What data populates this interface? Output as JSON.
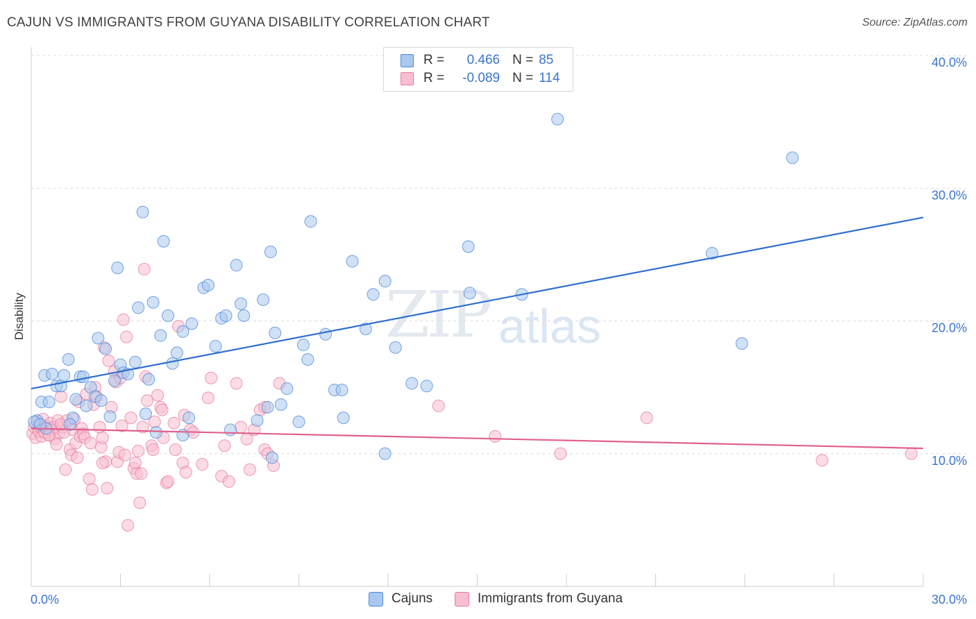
{
  "title": "CAJUN VS IMMIGRANTS FROM GUYANA DISABILITY CORRELATION CHART",
  "source": "Source: ZipAtlas.com",
  "watermark_zip": "ZIP",
  "watermark_atlas": "atlas",
  "legend": {
    "r_label": "R =",
    "n_label": "N =",
    "rows": [
      {
        "r": "0.466",
        "n": "85"
      },
      {
        "r": "-0.089",
        "n": "114"
      }
    ]
  },
  "colors": {
    "blue_fill": "#aac8ee",
    "blue_stroke": "#4a86d8",
    "blue_line": "#2e6fcf",
    "pink_fill": "#f7bfd0",
    "pink_stroke": "#e67a9e",
    "pink_line": "#e0608c",
    "tick_text": "#3a74d0"
  },
  "chart_data": {
    "type": "scatter",
    "title": "CAJUN VS IMMIGRANTS FROM GUYANA DISABILITY CORRELATION CHART",
    "xlabel": "",
    "ylabel": "Disability",
    "xlim": [
      0,
      30
    ],
    "ylim": [
      0,
      40
    ],
    "x_ticks": [
      "0.0%",
      "30.0%"
    ],
    "y_ticks": [
      "10.0%",
      "20.0%",
      "30.0%",
      "40.0%"
    ],
    "y_tick_values": [
      10,
      20,
      30,
      40
    ],
    "grid": true,
    "legend_position": "bottom",
    "series": [
      {
        "name": "Cajuns",
        "trend": [
          [
            0,
            14.9
          ],
          [
            30,
            27.8
          ]
        ],
        "points": [
          [
            0.2,
            12.5
          ],
          [
            0.35,
            13.9
          ],
          [
            0.45,
            15.9
          ],
          [
            0.6,
            13.9
          ],
          [
            0.7,
            16.0
          ],
          [
            0.85,
            15.1
          ],
          [
            1.0,
            15.1
          ],
          [
            1.1,
            15.9
          ],
          [
            1.25,
            17.1
          ],
          [
            1.4,
            12.7
          ],
          [
            1.5,
            14.1
          ],
          [
            1.65,
            15.8
          ],
          [
            1.75,
            15.8
          ],
          [
            1.85,
            13.6
          ],
          [
            2.0,
            15.0
          ],
          [
            2.15,
            14.3
          ],
          [
            2.25,
            18.7
          ],
          [
            2.35,
            14.0
          ],
          [
            2.5,
            17.9
          ],
          [
            2.65,
            12.8
          ],
          [
            2.8,
            15.5
          ],
          [
            2.9,
            24.0
          ],
          [
            3.0,
            16.7
          ],
          [
            3.1,
            16.1
          ],
          [
            3.25,
            16.0
          ],
          [
            3.5,
            16.9
          ],
          [
            3.6,
            21.0
          ],
          [
            3.75,
            28.2
          ],
          [
            3.85,
            13.0
          ],
          [
            3.95,
            15.6
          ],
          [
            4.1,
            21.4
          ],
          [
            4.2,
            11.6
          ],
          [
            4.35,
            18.9
          ],
          [
            4.45,
            26.0
          ],
          [
            4.6,
            20.4
          ],
          [
            4.75,
            16.8
          ],
          [
            4.9,
            17.6
          ],
          [
            5.1,
            19.2
          ],
          [
            5.3,
            12.7
          ],
          [
            5.4,
            19.8
          ],
          [
            5.1,
            11.4
          ],
          [
            5.8,
            22.5
          ],
          [
            5.95,
            22.7
          ],
          [
            6.2,
            18.1
          ],
          [
            6.4,
            20.2
          ],
          [
            6.55,
            20.4
          ],
          [
            6.7,
            11.8
          ],
          [
            6.9,
            24.2
          ],
          [
            7.05,
            21.3
          ],
          [
            7.15,
            20.4
          ],
          [
            7.6,
            12.5
          ],
          [
            7.8,
            21.6
          ],
          [
            7.95,
            13.5
          ],
          [
            8.05,
            25.2
          ],
          [
            8.2,
            19.1
          ],
          [
            8.1,
            9.7
          ],
          [
            8.4,
            13.7
          ],
          [
            8.6,
            14.9
          ],
          [
            9.0,
            12.4
          ],
          [
            9.15,
            18.2
          ],
          [
            9.3,
            17.1
          ],
          [
            9.4,
            27.5
          ],
          [
            9.9,
            19.0
          ],
          [
            10.2,
            14.8
          ],
          [
            10.45,
            14.8
          ],
          [
            10.5,
            12.7
          ],
          [
            10.8,
            24.5
          ],
          [
            11.25,
            19.4
          ],
          [
            11.5,
            22.0
          ],
          [
            11.9,
            23.0
          ],
          [
            12.25,
            18.0
          ],
          [
            11.9,
            10.0
          ],
          [
            12.8,
            15.3
          ],
          [
            13.3,
            15.1
          ],
          [
            14.7,
            25.6
          ],
          [
            14.75,
            22.1
          ],
          [
            16.5,
            22.0
          ],
          [
            17.7,
            35.2
          ],
          [
            22.9,
            25.1
          ],
          [
            23.9,
            18.3
          ],
          [
            25.6,
            32.3
          ],
          [
            0.1,
            12.4
          ],
          [
            0.5,
            11.9
          ],
          [
            0.3,
            12.2
          ],
          [
            1.3,
            12.2
          ]
        ]
      },
      {
        "name": "Immigrants from Guyana",
        "trend": [
          [
            0,
            11.9
          ],
          [
            30,
            10.4
          ]
        ],
        "points": [
          [
            0.05,
            11.5
          ],
          [
            0.1,
            12.0
          ],
          [
            0.15,
            11.2
          ],
          [
            0.2,
            12.4
          ],
          [
            0.25,
            11.7
          ],
          [
            0.3,
            12.0
          ],
          [
            0.35,
            11.3
          ],
          [
            0.4,
            12.6
          ],
          [
            0.45,
            11.6
          ],
          [
            0.5,
            12.1
          ],
          [
            0.55,
            11.9
          ],
          [
            0.6,
            11.4
          ],
          [
            0.65,
            12.3
          ],
          [
            0.7,
            11.8
          ],
          [
            0.75,
            12.0
          ],
          [
            0.8,
            11.1
          ],
          [
            0.85,
            10.7
          ],
          [
            0.9,
            12.5
          ],
          [
            0.95,
            11.6
          ],
          [
            1.0,
            14.3
          ],
          [
            1.05,
            12.0
          ],
          [
            1.1,
            11.6
          ],
          [
            1.15,
            8.8
          ],
          [
            1.2,
            12.5
          ],
          [
            1.3,
            10.3
          ],
          [
            1.35,
            9.9
          ],
          [
            1.4,
            11.8
          ],
          [
            1.45,
            12.6
          ],
          [
            1.5,
            10.8
          ],
          [
            1.55,
            9.7
          ],
          [
            1.6,
            13.9
          ],
          [
            1.65,
            11.3
          ],
          [
            1.7,
            11.9
          ],
          [
            1.75,
            11.5
          ],
          [
            1.8,
            11.2
          ],
          [
            1.85,
            14.5
          ],
          [
            1.95,
            8.1
          ],
          [
            2.0,
            10.8
          ],
          [
            2.05,
            7.3
          ],
          [
            2.1,
            13.7
          ],
          [
            2.15,
            15.0
          ],
          [
            2.2,
            14.3
          ],
          [
            2.3,
            12.0
          ],
          [
            2.35,
            10.5
          ],
          [
            2.4,
            11.2
          ],
          [
            2.45,
            18.0
          ],
          [
            2.5,
            9.4
          ],
          [
            2.55,
            7.4
          ],
          [
            2.6,
            17.0
          ],
          [
            2.7,
            13.5
          ],
          [
            2.8,
            16.2
          ],
          [
            2.85,
            15.4
          ],
          [
            2.9,
            9.4
          ],
          [
            2.95,
            10.1
          ],
          [
            3.0,
            15.7
          ],
          [
            3.05,
            12.1
          ],
          [
            3.1,
            20.1
          ],
          [
            3.15,
            9.9
          ],
          [
            3.2,
            18.8
          ],
          [
            3.25,
            4.6
          ],
          [
            3.35,
            12.7
          ],
          [
            3.45,
            8.9
          ],
          [
            3.5,
            9.3
          ],
          [
            3.55,
            8.5
          ],
          [
            3.6,
            10.2
          ],
          [
            3.65,
            6.3
          ],
          [
            3.7,
            8.5
          ],
          [
            3.75,
            12.0
          ],
          [
            3.8,
            23.9
          ],
          [
            3.85,
            15.8
          ],
          [
            3.9,
            14.0
          ],
          [
            4.05,
            10.6
          ],
          [
            4.1,
            10.3
          ],
          [
            4.15,
            12.4
          ],
          [
            4.25,
            14.4
          ],
          [
            4.35,
            13.5
          ],
          [
            4.4,
            13.3
          ],
          [
            4.45,
            11.2
          ],
          [
            4.55,
            7.8
          ],
          [
            4.6,
            7.9
          ],
          [
            4.8,
            12.3
          ],
          [
            4.85,
            10.3
          ],
          [
            4.95,
            19.6
          ],
          [
            5.1,
            9.3
          ],
          [
            5.2,
            8.6
          ],
          [
            5.15,
            12.9
          ],
          [
            5.35,
            11.8
          ],
          [
            5.45,
            11.6
          ],
          [
            5.75,
            9.2
          ],
          [
            5.95,
            14.2
          ],
          [
            6.05,
            15.7
          ],
          [
            6.4,
            8.3
          ],
          [
            6.5,
            10.6
          ],
          [
            6.65,
            7.9
          ],
          [
            6.9,
            15.3
          ],
          [
            7.05,
            12.0
          ],
          [
            7.25,
            11.1
          ],
          [
            7.35,
            8.8
          ],
          [
            7.5,
            11.8
          ],
          [
            7.7,
            13.3
          ],
          [
            7.85,
            13.5
          ],
          [
            7.85,
            10.3
          ],
          [
            7.95,
            10.0
          ],
          [
            8.15,
            9.1
          ],
          [
            8.35,
            15.3
          ],
          [
            13.7,
            13.6
          ],
          [
            15.6,
            11.3
          ],
          [
            17.8,
            10.0
          ],
          [
            20.7,
            12.7
          ],
          [
            26.6,
            9.5
          ],
          [
            29.6,
            10.0
          ],
          [
            0.6,
            11.4
          ],
          [
            1.0,
            12.2
          ],
          [
            2.4,
            9.3
          ]
        ]
      }
    ]
  },
  "bottom_legend": {
    "series_a": "Cajuns",
    "series_b": "Immigrants from Guyana"
  },
  "ylabel": "Disability"
}
